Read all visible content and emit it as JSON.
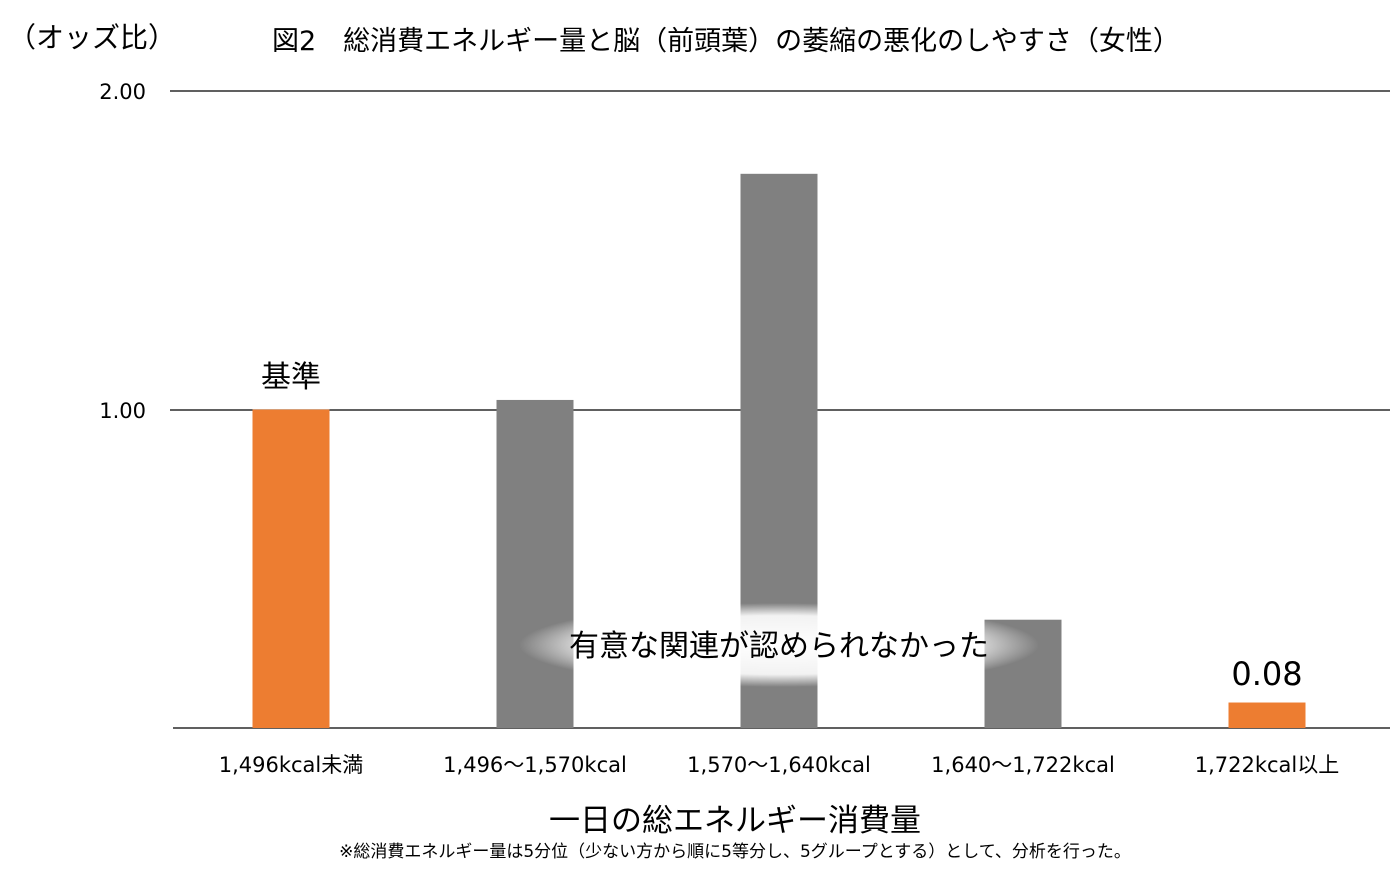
{
  "chart_data": {
    "type": "bar",
    "title": "図2　総消費エネルギー量と脳（前頭葉）の萎縮の悪化のしやすさ（女性）",
    "ylabel": "（オッズ比）",
    "xlabel": "一日の総エネルギー消費量",
    "footnote": "※総消費エネルギー量は5分位（少ない方から順に5等分し、5グループとする）として、分析を行った。",
    "categories": [
      "1,496kcal未満",
      "1,496〜1,570kcal",
      "1,570〜1,640kcal",
      "1,640〜1,722kcal",
      "1,722kcal以上"
    ],
    "values": [
      1.0,
      1.03,
      1.74,
      0.34,
      0.08
    ],
    "colors": [
      "#ED7D31",
      "#808080",
      "#808080",
      "#808080",
      "#ED7D31"
    ],
    "ylim": [
      0,
      2
    ],
    "yticks": [
      "1.00",
      "2.00"
    ],
    "grid": true,
    "annotations": {
      "reference": "基準",
      "last_value": "0.08",
      "note": "有意な関連が認められなかった"
    }
  }
}
